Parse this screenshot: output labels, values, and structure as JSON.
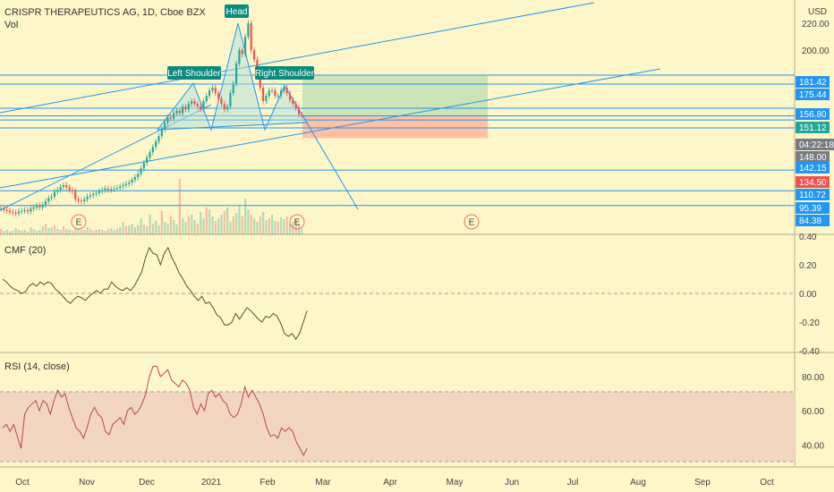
{
  "header": {
    "symbol": "CRISPR THERAPEUTICS AG, 1D, Cboe BZX",
    "vol_label": "Vol",
    "currency": "USD"
  },
  "panes": {
    "cmf_label": "CMF (20)",
    "rsi_label": "RSI (14, close)"
  },
  "colors": {
    "background": "#fdf6c8",
    "up": "#26a69a",
    "down": "#ef5350",
    "line": "#2196f3",
    "pattern_fill": "#b2dfdb",
    "profit_zone": "#a5d6a7",
    "loss_zone": "#ffab91",
    "rsi_band": "#f3d6c0",
    "cmf_line": "#4a5d23",
    "rsi_line": "#b04a5a",
    "label_teal": "#0a8a7d"
  },
  "pattern_labels": [
    "Left Shoulder",
    "Head",
    "Right Shoulder"
  ],
  "earnings_marker": "E",
  "price_badges": [
    {
      "text": "181.42",
      "kind": "line"
    },
    {
      "text": "175.44",
      "kind": "line"
    },
    {
      "text": "156.80",
      "kind": "line"
    },
    {
      "text": "151.12",
      "kind": "teal"
    },
    {
      "text": "04:22:18",
      "kind": "gray"
    },
    {
      "text": "148.00",
      "kind": "gray"
    },
    {
      "text": "142.15",
      "kind": "line"
    },
    {
      "text": "134.50",
      "kind": "red"
    },
    {
      "text": "110.72",
      "kind": "line"
    },
    {
      "text": "95.39",
      "kind": "line"
    },
    {
      "text": "84.38",
      "kind": "line"
    }
  ],
  "chart_data": [
    {
      "type": "candlestick",
      "title": "CRISPR THERAPEUTICS AG, 1D, Cboe BZX",
      "ylabel": "USD",
      "yticks": [
        220.0,
        200.0
      ],
      "x_ticks": [
        "Oct",
        "Nov",
        "Dec",
        "2021",
        "Feb",
        "Mar",
        "Apr",
        "May",
        "Jun",
        "Jul",
        "Aug",
        "Sep",
        "Oct"
      ],
      "series": [
        {
          "name": "price",
          "values": [
            82.0,
            81.0,
            80.5,
            79.5,
            79.0,
            78.5,
            80.0,
            80.5,
            81.0,
            80.0,
            82.0,
            83.0,
            84.5,
            83.0,
            85.0,
            87.5,
            90.0,
            91.0,
            94.5,
            96.0,
            98.0,
            99.5,
            98.0,
            96.0,
            95.0,
            89.0,
            88.0,
            87.5,
            89.0,
            91.0,
            92.0,
            93.0,
            93.5,
            95.0,
            96.0,
            97.0,
            96.0,
            96.5,
            97.0,
            97.5,
            98.5,
            99.5,
            100.5,
            101.5,
            103.5,
            105.5,
            108.0,
            112.0,
            116.0,
            120.0,
            124.0,
            128.0,
            132.0,
            136.0,
            141.0,
            146.0,
            150.0,
            149.0,
            153.0,
            155.0,
            153.0,
            158.0,
            156.0,
            160.0,
            162.0,
            160.0,
            158.0,
            156.0,
            162.0,
            166.0,
            170.0,
            172.0,
            168.0,
            164.0,
            160.0,
            156.0,
            158.0,
            168.0,
            175.0,
            190.0,
            200.0,
            197.0,
            210.0,
            220.0,
            200.0,
            193.0,
            185.0,
            172.0,
            162.0,
            166.0,
            170.0,
            170.0,
            166.0,
            166.0,
            170.0,
            172.0,
            168.0,
            163.0,
            160.0,
            157.0,
            152.0,
            151.12
          ]
        },
        {
          "name": "CMF (20)",
          "values": [
            0.1,
            0.08,
            0.05,
            0.03,
            0.02,
            0.0,
            0.01,
            0.05,
            0.07,
            0.05,
            0.08,
            0.06,
            0.08,
            0.07,
            0.03,
            0.01,
            -0.02,
            -0.05,
            -0.07,
            -0.04,
            -0.02,
            -0.03,
            -0.05,
            -0.02,
            0.0,
            0.02,
            0.0,
            0.03,
            0.03,
            0.08,
            0.05,
            0.03,
            0.02,
            0.04,
            0.02,
            0.05,
            0.1,
            0.15,
            0.25,
            0.32,
            0.28,
            0.27,
            0.2,
            0.28,
            0.32,
            0.25,
            0.2,
            0.14,
            0.1,
            0.05,
            0.02,
            -0.02,
            -0.05,
            -0.02,
            -0.07,
            -0.06,
            -0.1,
            -0.15,
            -0.17,
            -0.22,
            -0.22,
            -0.2,
            -0.14,
            -0.18,
            -0.14,
            -0.1,
            -0.12,
            -0.15,
            -0.18,
            -0.2,
            -0.16,
            -0.17,
            -0.14,
            -0.16,
            -0.21,
            -0.28,
            -0.3,
            -0.28,
            -0.32,
            -0.28,
            -0.2,
            -0.12
          ]
        },
        {
          "name": "RSI (14, close)",
          "values": [
            50,
            52,
            48,
            52,
            45,
            38,
            58,
            62,
            64,
            66,
            60,
            66,
            64,
            58,
            66,
            72,
            68,
            70,
            62,
            56,
            50,
            48,
            44,
            50,
            58,
            62,
            58,
            56,
            48,
            46,
            52,
            54,
            56,
            52,
            60,
            62,
            58,
            60,
            64,
            70,
            80,
            86,
            86,
            80,
            82,
            84,
            78,
            76,
            74,
            78,
            76,
            72,
            62,
            58,
            64,
            60,
            70,
            72,
            68,
            70,
            66,
            64,
            58,
            56,
            58,
            64,
            74,
            68,
            72,
            68,
            64,
            58,
            50,
            45,
            46,
            44,
            50,
            48,
            50,
            48,
            42,
            38,
            34,
            38
          ]
        }
      ],
      "levels": [
        181.42,
        175.44,
        156.8,
        151.12,
        148.0,
        142.15,
        134.5,
        110.72,
        95.39,
        84.38
      ],
      "cmf_yticks": [
        0.4,
        0.2,
        0.0,
        -0.2,
        -0.4
      ],
      "rsi_yticks": [
        80.0,
        60.0,
        40.0
      ]
    }
  ]
}
